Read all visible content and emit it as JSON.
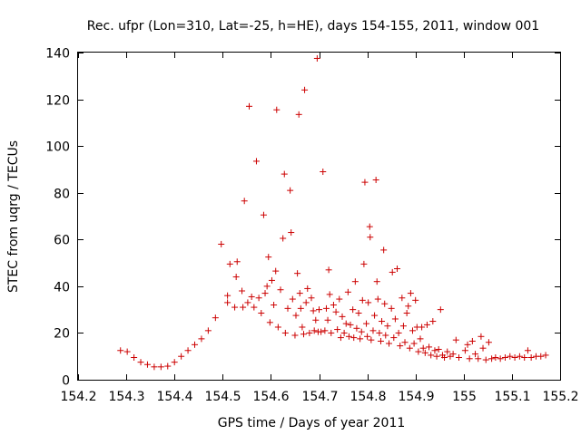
{
  "chart_data": {
    "type": "scatter",
    "title": "Rec. ufpr (Lon=310, Lat=-25, h=HE), days 154-155, 2011, window 001",
    "xlabel": "GPS time / Days of year 2011",
    "ylabel": "STEC from uqrg / TECUs",
    "xlim": [
      154.2,
      155.2
    ],
    "ylim": [
      0,
      140
    ],
    "x_ticks": [
      154.2,
      154.3,
      154.4,
      154.5,
      154.6,
      154.7,
      154.8,
      154.9,
      155,
      155.1,
      155.2
    ],
    "x_tick_labels": [
      "154.2",
      "154.3",
      "154.4",
      "154.5",
      "154.6",
      "154.7",
      "154.8",
      "154.9",
      "155",
      "155.1",
      "155.2"
    ],
    "y_ticks": [
      0,
      20,
      40,
      60,
      80,
      100,
      120,
      140
    ],
    "y_tick_labels": [
      "0",
      "20",
      "40",
      "60",
      "80",
      "100",
      "120",
      "140"
    ],
    "grid": false,
    "marker": "plus",
    "color": "#cc0000",
    "points": [
      [
        154.288,
        12.5
      ],
      [
        154.302,
        12.0
      ],
      [
        154.316,
        9.5
      ],
      [
        154.33,
        7.5
      ],
      [
        154.344,
        6.5
      ],
      [
        154.358,
        5.5
      ],
      [
        154.372,
        5.5
      ],
      [
        154.386,
        5.8
      ],
      [
        154.4,
        7.5
      ],
      [
        154.414,
        10.0
      ],
      [
        154.428,
        12.5
      ],
      [
        154.442,
        15.0
      ],
      [
        154.456,
        17.5
      ],
      [
        154.47,
        21.0
      ],
      [
        154.485,
        26.5
      ],
      [
        154.497,
        58.0
      ],
      [
        154.51,
        33.0
      ],
      [
        154.51,
        36.0
      ],
      [
        154.515,
        49.5
      ],
      [
        154.525,
        31.0
      ],
      [
        154.528,
        44.0
      ],
      [
        154.53,
        50.5
      ],
      [
        154.54,
        38.0
      ],
      [
        154.542,
        31.0
      ],
      [
        154.545,
        76.5
      ],
      [
        154.552,
        33.0
      ],
      [
        154.555,
        117.0
      ],
      [
        154.56,
        35.5
      ],
      [
        154.565,
        31.0
      ],
      [
        154.57,
        93.5
      ],
      [
        154.575,
        35.0
      ],
      [
        154.58,
        28.5
      ],
      [
        154.585,
        70.5
      ],
      [
        154.588,
        37.0
      ],
      [
        154.592,
        40.0
      ],
      [
        154.595,
        52.5
      ],
      [
        154.598,
        24.5
      ],
      [
        154.602,
        42.5
      ],
      [
        154.606,
        32.0
      ],
      [
        154.61,
        46.5
      ],
      [
        154.612,
        115.5
      ],
      [
        154.615,
        22.5
      ],
      [
        154.62,
        38.5
      ],
      [
        154.625,
        60.5
      ],
      [
        154.628,
        88.0
      ],
      [
        154.63,
        20.0
      ],
      [
        154.635,
        30.5
      ],
      [
        154.64,
        81.0
      ],
      [
        154.642,
        63.0
      ],
      [
        154.645,
        34.5
      ],
      [
        154.65,
        19.0
      ],
      [
        154.652,
        27.5
      ],
      [
        154.655,
        45.5
      ],
      [
        154.658,
        113.5
      ],
      [
        154.66,
        37.0
      ],
      [
        154.662,
        30.5
      ],
      [
        154.665,
        22.5
      ],
      [
        154.668,
        19.5
      ],
      [
        154.67,
        124.0
      ],
      [
        154.673,
        33.0
      ],
      [
        154.676,
        39.0
      ],
      [
        154.68,
        20.0
      ],
      [
        154.684,
        35.0
      ],
      [
        154.688,
        29.5
      ],
      [
        154.69,
        21.0
      ],
      [
        154.693,
        25.5
      ],
      [
        154.696,
        137.5
      ],
      [
        154.698,
        20.5
      ],
      [
        154.7,
        30.0
      ],
      [
        154.704,
        20.5
      ],
      [
        154.708,
        89.0
      ],
      [
        154.712,
        21.0
      ],
      [
        154.715,
        30.5
      ],
      [
        154.718,
        25.5
      ],
      [
        154.72,
        47.0
      ],
      [
        154.722,
        36.5
      ],
      [
        154.725,
        20.0
      ],
      [
        154.73,
        32.0
      ],
      [
        154.735,
        29.0
      ],
      [
        154.738,
        21.5
      ],
      [
        154.742,
        34.5
      ],
      [
        154.745,
        18.0
      ],
      [
        154.748,
        27.0
      ],
      [
        154.752,
        20.0
      ],
      [
        154.756,
        24.0
      ],
      [
        154.76,
        37.5
      ],
      [
        154.762,
        18.5
      ],
      [
        154.765,
        23.5
      ],
      [
        154.77,
        30.0
      ],
      [
        154.772,
        18.0
      ],
      [
        154.775,
        42.0
      ],
      [
        154.778,
        22.0
      ],
      [
        154.782,
        28.5
      ],
      [
        154.785,
        17.5
      ],
      [
        154.788,
        20.5
      ],
      [
        154.79,
        34.0
      ],
      [
        154.793,
        49.5
      ],
      [
        154.795,
        84.5
      ],
      [
        154.798,
        24.0
      ],
      [
        154.8,
        18.5
      ],
      [
        154.802,
        33.0
      ],
      [
        154.805,
        65.5
      ],
      [
        154.806,
        61.0
      ],
      [
        154.808,
        17.0
      ],
      [
        154.812,
        21.0
      ],
      [
        154.815,
        27.5
      ],
      [
        154.818,
        85.5
      ],
      [
        154.82,
        42.0
      ],
      [
        154.822,
        34.5
      ],
      [
        154.825,
        20.0
      ],
      [
        154.828,
        16.5
      ],
      [
        154.83,
        25.0
      ],
      [
        154.834,
        55.5
      ],
      [
        154.836,
        32.5
      ],
      [
        154.838,
        19.0
      ],
      [
        154.842,
        23.0
      ],
      [
        154.845,
        15.5
      ],
      [
        154.85,
        30.5
      ],
      [
        154.852,
        46.0
      ],
      [
        154.855,
        18.0
      ],
      [
        154.858,
        26.0
      ],
      [
        154.862,
        47.5
      ],
      [
        154.865,
        20.0
      ],
      [
        154.868,
        14.5
      ],
      [
        154.872,
        35.0
      ],
      [
        154.875,
        23.0
      ],
      [
        154.878,
        16.0
      ],
      [
        154.882,
        28.5
      ],
      [
        154.885,
        31.5
      ],
      [
        154.888,
        13.5
      ],
      [
        154.89,
        37.0
      ],
      [
        154.894,
        21.0
      ],
      [
        154.897,
        15.5
      ],
      [
        154.9,
        34.0
      ],
      [
        154.903,
        22.5
      ],
      [
        154.906,
        12.0
      ],
      [
        154.91,
        17.5
      ],
      [
        154.913,
        22.5
      ],
      [
        154.916,
        13.5
      ],
      [
        154.92,
        11.5
      ],
      [
        154.924,
        23.5
      ],
      [
        154.928,
        14.0
      ],
      [
        154.932,
        10.5
      ],
      [
        154.936,
        25.0
      ],
      [
        154.94,
        12.5
      ],
      [
        154.944,
        10.0
      ],
      [
        154.948,
        13.0
      ],
      [
        154.952,
        30.0
      ],
      [
        154.956,
        10.5
      ],
      [
        154.96,
        9.5
      ],
      [
        154.966,
        12.0
      ],
      [
        154.972,
        10.0
      ],
      [
        154.978,
        11.0
      ],
      [
        154.984,
        17.0
      ],
      [
        154.99,
        9.5
      ],
      [
        155.003,
        12.5
      ],
      [
        155.008,
        15.0
      ],
      [
        155.012,
        9.0
      ],
      [
        155.018,
        16.5
      ],
      [
        155.024,
        11.0
      ],
      [
        155.03,
        9.0
      ],
      [
        155.036,
        18.5
      ],
      [
        155.04,
        13.5
      ],
      [
        155.046,
        8.5
      ],
      [
        155.052,
        16.0
      ],
      [
        155.058,
        9.0
      ],
      [
        155.066,
        9.5
      ],
      [
        155.076,
        9.0
      ],
      [
        155.086,
        9.5
      ],
      [
        155.096,
        10.0
      ],
      [
        155.106,
        9.5
      ],
      [
        155.116,
        10.0
      ],
      [
        155.126,
        9.5
      ],
      [
        155.133,
        12.5
      ],
      [
        155.14,
        9.5
      ],
      [
        155.15,
        10.0
      ],
      [
        155.16,
        10.0
      ],
      [
        155.17,
        10.5
      ]
    ]
  }
}
